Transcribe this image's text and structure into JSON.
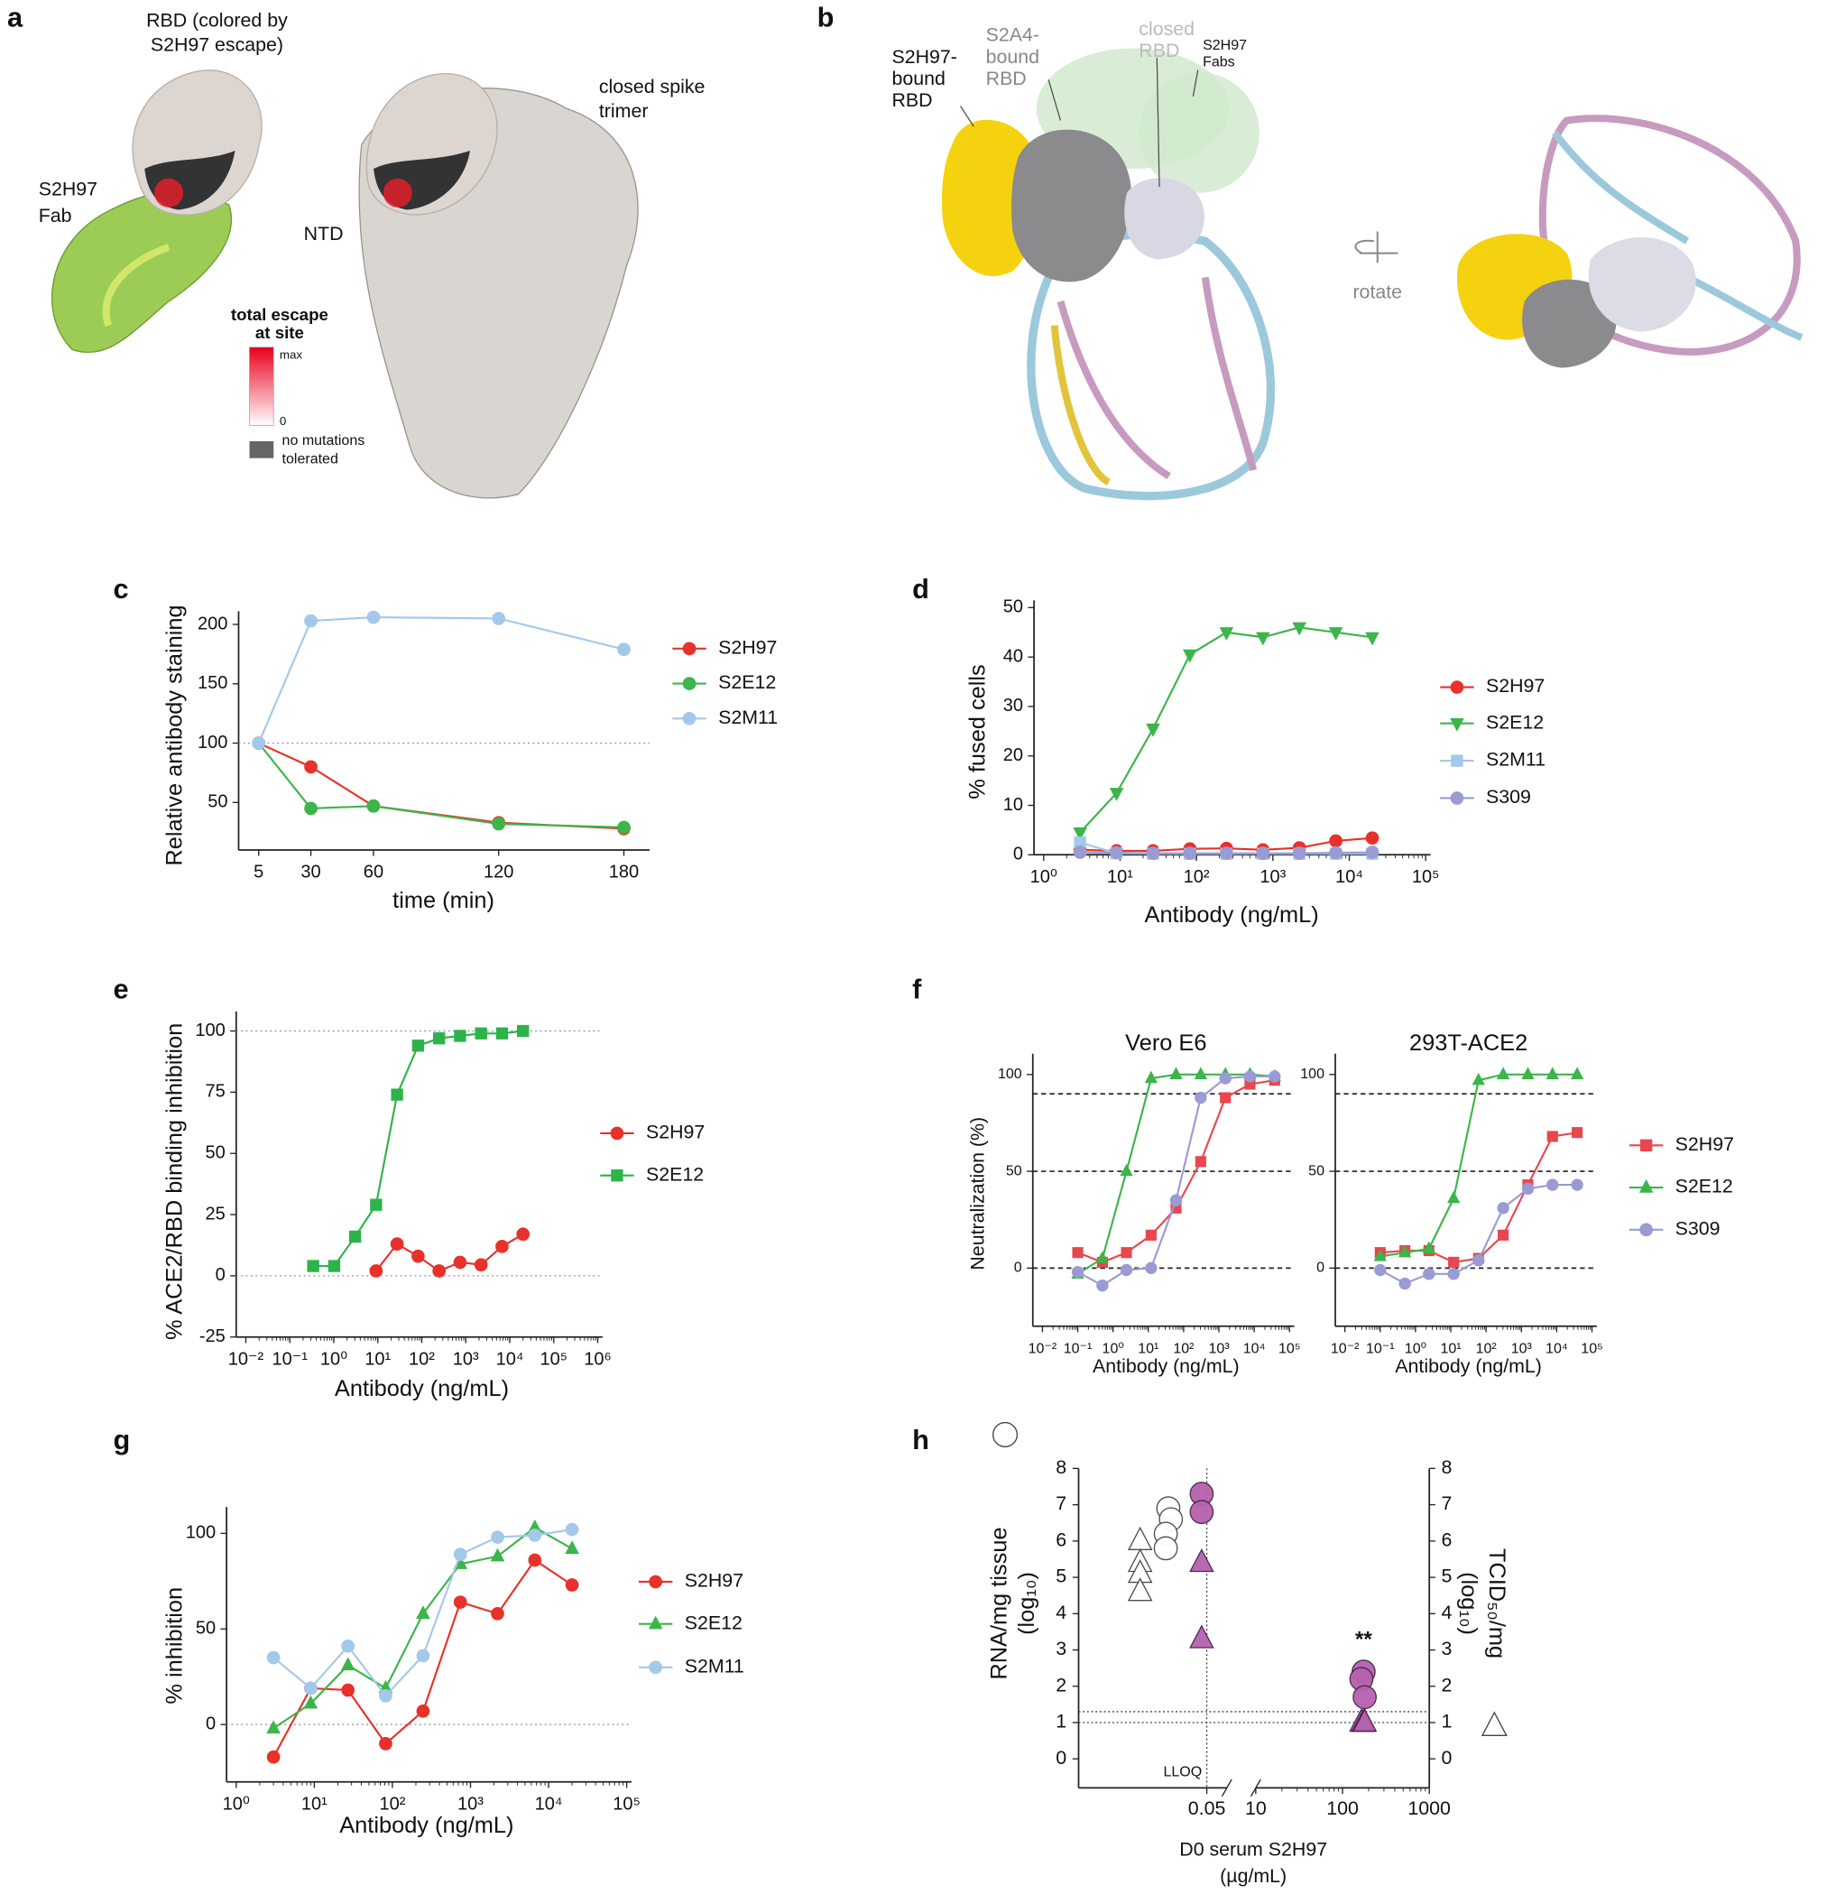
{
  "panel_a": {
    "letter": "a",
    "rbd_label": [
      "RBD (colored by",
      "S2H97 escape)"
    ],
    "fab_label": [
      "S2H97",
      "Fab"
    ],
    "spike_label": [
      "closed spike",
      "trimer"
    ],
    "ntd_label": "NTD",
    "scale_title": [
      "total escape",
      "at site"
    ],
    "scale_max": "max",
    "scale_min": "0",
    "gray_label": [
      "no mutations",
      "tolerated"
    ]
  },
  "panel_b": {
    "letter": "b",
    "s2h97_rbd": [
      "S2H97-",
      "bound",
      "RBD"
    ],
    "s2a4_rbd": [
      "S2A4-",
      "bound",
      "RBD"
    ],
    "closed_rbd": [
      "closed",
      "RBD"
    ],
    "fabs": [
      "S2H97",
      "Fabs"
    ],
    "rotate": "rotate"
  },
  "chart_data": [
    {
      "type": "line",
      "panel": "c",
      "xlabel": "time (min)",
      "ylabel": "Relative antibody staining",
      "x": [
        5,
        30,
        60,
        120,
        180
      ],
      "xlim": [
        0,
        190
      ],
      "xticks": [
        5,
        30,
        60,
        120,
        180
      ],
      "ylim": [
        10,
        205
      ],
      "yticks": [
        50,
        100,
        150,
        200
      ],
      "hlines": [
        100
      ],
      "series": [
        {
          "name": "S2H97",
          "color": "#e8312a",
          "marker": "circle",
          "values": [
            100,
            80,
            47,
            33,
            28
          ]
        },
        {
          "name": "S2E12",
          "color": "#3cb54a",
          "marker": "circle",
          "values": [
            100,
            45,
            47,
            32,
            29
          ]
        },
        {
          "name": "S2M11",
          "color": "#a3c8ea",
          "marker": "circle",
          "values": [
            100,
            203,
            206,
            205,
            179
          ]
        }
      ]
    },
    {
      "type": "line",
      "panel": "d",
      "xlabel": "Antibody (ng/mL)",
      "ylabel": "% fused cells",
      "xlog": true,
      "x": [
        3,
        9,
        27,
        82,
        247,
        741,
        2222,
        6667,
        20000
      ],
      "xlim": [
        1,
        100000
      ],
      "xticks": [
        {
          "value": 1,
          "label": "10⁰"
        },
        {
          "value": 10,
          "label": "10¹"
        },
        {
          "value": 100,
          "label": "10²"
        },
        {
          "value": 1000,
          "label": "10³"
        },
        {
          "value": 10000,
          "label": "10⁴"
        },
        {
          "value": 100000,
          "label": "10⁵"
        }
      ],
      "ylim": [
        0,
        50
      ],
      "yticks": [
        0,
        10,
        20,
        30,
        40,
        50
      ],
      "series": [
        {
          "name": "S2H97",
          "color": "#e8312a",
          "marker": "circle",
          "values": [
            1.0,
            0.8,
            0.8,
            1.2,
            1.3,
            1.0,
            1.4,
            2.8,
            3.4
          ]
        },
        {
          "name": "S2E12",
          "color": "#3cb54a",
          "marker": "triangle-down",
          "values": [
            4.5,
            12.5,
            25.5,
            40.5,
            45,
            44,
            46,
            45,
            44
          ]
        },
        {
          "name": "S2M11",
          "color": "#a3c8ea",
          "marker": "square",
          "values": [
            2.5,
            0.3,
            0.2,
            0.2,
            0.2,
            0.2,
            0.2,
            0.2,
            0.2
          ]
        },
        {
          "name": "S309",
          "color": "#9a9ad4",
          "marker": "circle",
          "values": [
            0.5,
            0.4,
            0.3,
            0.3,
            0.3,
            0.3,
            0.3,
            0.4,
            0.5
          ]
        }
      ]
    },
    {
      "type": "line",
      "panel": "e",
      "xlabel": "Antibody (ng/mL)",
      "ylabel": "% ACE2/RBD binding inhibition",
      "xlog": true,
      "xlim": [
        0.01,
        1000000
      ],
      "xticks": [
        {
          "value": 0.01,
          "label": "10⁻²"
        },
        {
          "value": 0.1,
          "label": "10⁻¹"
        },
        {
          "value": 1,
          "label": "10⁰"
        },
        {
          "value": 10,
          "label": "10¹"
        },
        {
          "value": 100,
          "label": "10²"
        },
        {
          "value": 1000,
          "label": "10³"
        },
        {
          "value": 10000,
          "label": "10⁴"
        },
        {
          "value": 100000,
          "label": "10⁵"
        },
        {
          "value": 1000000,
          "label": "10⁶"
        }
      ],
      "ylim": [
        -25,
        105
      ],
      "yticks": [
        -25,
        0,
        25,
        50,
        75,
        100
      ],
      "hlines": [
        0,
        100
      ],
      "series": [
        {
          "name": "S2H97",
          "color": "#e8312a",
          "marker": "circle",
          "x": [
            9.14,
            27.4,
            82.3,
            247,
            741,
            2222,
            6667,
            20000
          ],
          "values": [
            2,
            13,
            8,
            2,
            5.5,
            4.5,
            12,
            17
          ]
        },
        {
          "name": "S2E12",
          "color": "#2db34a",
          "marker": "square",
          "x": [
            0.339,
            1.02,
            3.05,
            9.14,
            27.4,
            82.3,
            247,
            741,
            2222,
            6667,
            20000
          ],
          "values": [
            4,
            4,
            16,
            29,
            74,
            94,
            97,
            98,
            99,
            99,
            100
          ]
        }
      ]
    },
    {
      "type": "line",
      "panel": "f",
      "xlabel": "Antibody (ng/mL)",
      "ylabel": "Neutralization (%)",
      "xlog": true,
      "x": [
        0.1,
        0.5,
        2.4,
        12,
        61,
        305,
        1526,
        7600,
        38000
      ],
      "xlim": [
        0.01,
        100000
      ],
      "xticks": [
        {
          "value": 0.01,
          "label": "10⁻²"
        },
        {
          "value": 0.1,
          "label": "10⁻¹"
        },
        {
          "value": 1,
          "label": "10⁰"
        },
        {
          "value": 10,
          "label": "10¹"
        },
        {
          "value": 100,
          "label": "10²"
        },
        {
          "value": 1000,
          "label": "10³"
        },
        {
          "value": 10000,
          "label": "10⁴"
        },
        {
          "value": 100000,
          "label": "10⁵"
        }
      ],
      "ylim": [
        -30,
        107
      ],
      "yticks": [
        0,
        50,
        100
      ],
      "hlines": [
        0,
        50,
        90
      ],
      "series": [
        {
          "name": "S2H97",
          "color": "#e8474f",
          "marker": "square"
        },
        {
          "name": "S2E12",
          "color": "#3cb54a",
          "marker": "triangle"
        },
        {
          "name": "S309",
          "color": "#9a9ad4",
          "marker": "circle"
        }
      ],
      "subplots": [
        {
          "title": "Vero E6",
          "values": [
            [
              8,
              3,
              8,
              17,
              31,
              55,
              88,
              95,
              97
            ],
            [
              -3,
              5,
              50,
              98,
              100,
              100,
              100,
              100,
              99
            ],
            [
              -2,
              -9,
              -1,
              0,
              35,
              88,
              98,
              99,
              99
            ]
          ]
        },
        {
          "title": "293T-ACE2",
          "values": [
            [
              8,
              9,
              9,
              3,
              5,
              17,
              43,
              68,
              70
            ],
            [
              6,
              8,
              10,
              36,
              97,
              100,
              100,
              100,
              100
            ],
            [
              -1,
              -8,
              -3,
              -3,
              4,
              31,
              41,
              43,
              43
            ]
          ]
        }
      ]
    },
    {
      "type": "line",
      "panel": "g",
      "xlabel": "Antibody (ng/mL)",
      "ylabel": "% inhibition",
      "xlog": true,
      "x": [
        3,
        9,
        27,
        82,
        247,
        741,
        2222,
        6667,
        20000
      ],
      "xlim": [
        1,
        100000
      ],
      "xticks": [
        {
          "value": 1,
          "label": "10⁰"
        },
        {
          "value": 10,
          "label": "10¹"
        },
        {
          "value": 100,
          "label": "10²"
        },
        {
          "value": 1000,
          "label": "10³"
        },
        {
          "value": 10000,
          "label": "10⁴"
        },
        {
          "value": 100000,
          "label": "10⁵"
        }
      ],
      "ylim": [
        -30,
        110
      ],
      "yticks": [
        0,
        50,
        100
      ],
      "hlines": [
        0
      ],
      "series": [
        {
          "name": "S2H97",
          "color": "#e8312a",
          "marker": "circle",
          "values": [
            -17,
            19,
            18,
            -10,
            7,
            64,
            58,
            86,
            73
          ]
        },
        {
          "name": "S2E12",
          "color": "#3cb54a",
          "marker": "triangle",
          "values": [
            -2,
            11,
            31,
            19,
            58,
            84,
            88,
            103,
            92
          ]
        },
        {
          "name": "S2M11",
          "color": "#a3c8ea",
          "marker": "circle",
          "values": [
            35,
            19,
            41,
            15,
            36,
            89,
            98,
            99,
            102
          ]
        }
      ]
    },
    {
      "type": "scatter",
      "panel": "h",
      "ylabel": "RNA/mg tissue",
      "ylabel_unit": "(log₁₀)",
      "y2label": "TCID₅₀/mg",
      "y2label_unit": "(log₁₀)",
      "xlabel": "D0 serum S2H97",
      "xlabel_unit": "(µg/mL)",
      "xlim": [
        0,
        0.055
      ],
      "xticks": [
        0.05
      ],
      "x2lim": [
        10,
        1000
      ],
      "x2log": true,
      "x2ticks": [
        10,
        100,
        1000
      ],
      "ylim": [
        -0.8,
        8
      ],
      "yticks": [
        0,
        1,
        2,
        3,
        4,
        5,
        6,
        7,
        8
      ],
      "y2lim": [
        -0.8,
        8
      ],
      "y2ticks": [
        0,
        1,
        2,
        3,
        4,
        5,
        6,
        7,
        8
      ],
      "hlines": [
        1,
        1.3
      ],
      "vlines": [
        0.05
      ],
      "annotations": [
        "**",
        "LLOQ"
      ],
      "series": [
        {
          "marker": "circle",
          "color": "none",
          "x": [
            0.035,
            0.036,
            0.034,
            0.034
          ],
          "values": [
            6.9,
            6.6,
            6.2,
            5.8
          ]
        },
        {
          "marker": "triangle",
          "color": "none",
          "axis": "y2",
          "x": [
            0.024,
            0.024,
            0.024,
            0.024
          ],
          "values": [
            6.0,
            5.4,
            5.1,
            4.6
          ]
        },
        {
          "marker": "circle",
          "color": "#b562ad",
          "x": [
            0.048,
            0.048
          ],
          "values": [
            7.3,
            6.8
          ]
        },
        {
          "marker": "triangle",
          "color": "#b562ad",
          "axis": "y2",
          "x": [
            0.048,
            0.048
          ],
          "values": [
            5.4,
            3.3
          ]
        },
        {
          "marker": "circle",
          "color": "#b562ad",
          "xaxis": "x2",
          "x": [
            175,
            165,
            180
          ],
          "values": [
            2.4,
            2.2,
            1.7
          ]
        },
        {
          "marker": "triangle",
          "color": "#b562ad",
          "axis": "y2",
          "xaxis": "x2",
          "x": [
            165,
            175,
            180
          ],
          "values": [
            1,
            1,
            1
          ]
        }
      ]
    }
  ]
}
